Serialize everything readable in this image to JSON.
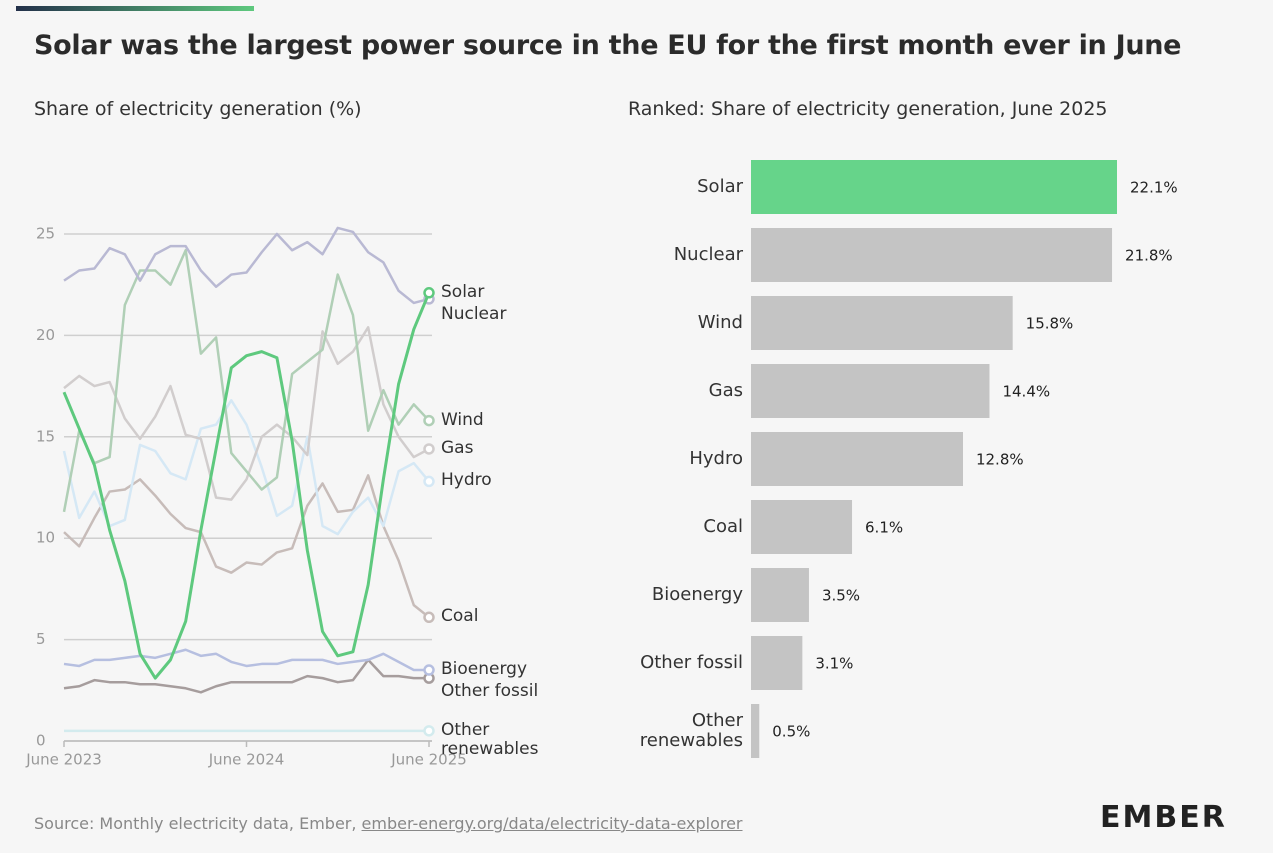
{
  "title": "Solar was the largest power source in the EU for the first month ever in June",
  "source": {
    "text": "Source: Monthly electricity data, Ember,",
    "link": "ember-energy.org/data/electricity-data-explorer"
  },
  "logo": "EMBER",
  "chart_data": [
    {
      "type": "line",
      "title": "Share of electricity generation (%)",
      "x": [
        "2023-06",
        "2023-07",
        "2023-08",
        "2023-09",
        "2023-10",
        "2023-11",
        "2023-12",
        "2024-01",
        "2024-02",
        "2024-03",
        "2024-04",
        "2024-05",
        "2024-06",
        "2024-07",
        "2024-08",
        "2024-09",
        "2024-10",
        "2024-11",
        "2024-12",
        "2025-01",
        "2025-02",
        "2025-03",
        "2025-04",
        "2025-05",
        "2025-06"
      ],
      "xticks": [
        {
          "value": "2023-06",
          "label": "June 2023"
        },
        {
          "value": "2024-06",
          "label": "June 2024"
        },
        {
          "value": "2025-06",
          "label": "June 2025"
        }
      ],
      "ylim": [
        0,
        26
      ],
      "yticks": [
        0,
        5,
        10,
        15,
        20,
        25
      ],
      "grid": true,
      "series": [
        {
          "name": "Other renewables",
          "color": "#d3ebee",
          "values": [
            0.5,
            0.5,
            0.5,
            0.5,
            0.5,
            0.5,
            0.5,
            0.5,
            0.5,
            0.5,
            0.5,
            0.5,
            0.5,
            0.5,
            0.5,
            0.5,
            0.5,
            0.5,
            0.5,
            0.5,
            0.5,
            0.5,
            0.5,
            0.5,
            0.5
          ]
        },
        {
          "name": "Other fossil",
          "color": "#a69d9d",
          "values": [
            2.6,
            2.7,
            3.0,
            2.9,
            2.9,
            2.8,
            2.8,
            2.7,
            2.6,
            2.4,
            2.7,
            2.9,
            2.9,
            2.9,
            2.9,
            2.9,
            3.2,
            3.1,
            2.9,
            3.0,
            4.0,
            3.2,
            3.2,
            3.1,
            3.1
          ]
        },
        {
          "name": "Bioenergy",
          "color": "#b6bfe0",
          "values": [
            3.8,
            3.7,
            4.0,
            4.0,
            4.1,
            4.2,
            4.1,
            4.3,
            4.5,
            4.2,
            4.3,
            3.9,
            3.7,
            3.8,
            3.8,
            4.0,
            4.0,
            4.0,
            3.8,
            3.9,
            4.0,
            4.3,
            3.9,
            3.5,
            3.5
          ]
        },
        {
          "name": "Coal",
          "color": "#c7bcb9",
          "values": [
            10.3,
            9.6,
            11.0,
            12.3,
            12.4,
            12.9,
            12.1,
            11.2,
            10.5,
            10.3,
            8.6,
            8.3,
            8.8,
            8.7,
            9.3,
            9.5,
            11.6,
            12.7,
            11.3,
            11.4,
            13.1,
            10.6,
            8.9,
            6.7,
            6.1
          ]
        },
        {
          "name": "Hydro",
          "color": "#d5e8f5",
          "values": [
            14.3,
            11.0,
            12.3,
            10.6,
            10.9,
            14.6,
            14.3,
            13.2,
            12.9,
            15.4,
            15.6,
            16.8,
            15.6,
            13.5,
            11.1,
            11.6,
            15.0,
            10.6,
            10.2,
            11.3,
            12.0,
            10.6,
            13.3,
            13.7,
            12.8
          ]
        },
        {
          "name": "Gas",
          "color": "#d1cdcd",
          "values": [
            17.4,
            18.0,
            17.5,
            17.7,
            15.9,
            14.9,
            16.0,
            17.5,
            15.1,
            14.9,
            12.0,
            11.9,
            12.9,
            15.0,
            15.6,
            15.0,
            14.1,
            20.2,
            18.6,
            19.2,
            20.4,
            16.6,
            15.0,
            14.0,
            14.4
          ]
        },
        {
          "name": "Wind",
          "color": "#b0cfb6",
          "values": [
            11.3,
            15.3,
            13.7,
            14.0,
            21.5,
            23.2,
            23.2,
            22.5,
            24.2,
            19.1,
            19.9,
            14.2,
            13.3,
            12.4,
            13.0,
            18.1,
            18.7,
            19.3,
            23.0,
            21.0,
            15.3,
            17.3,
            15.6,
            16.6,
            15.8
          ]
        },
        {
          "name": "Nuclear",
          "color": "#b9b9d3",
          "values": [
            22.7,
            23.2,
            23.3,
            24.3,
            24.0,
            22.7,
            24.0,
            24.4,
            24.4,
            23.2,
            22.4,
            23.0,
            23.1,
            24.1,
            25.0,
            24.2,
            24.6,
            24.0,
            25.3,
            25.1,
            24.1,
            23.6,
            22.2,
            21.6,
            21.8
          ]
        },
        {
          "name": "Solar",
          "color": "#5ec97e",
          "values": [
            17.2,
            15.4,
            13.6,
            10.4,
            7.9,
            4.3,
            3.1,
            4.0,
            5.9,
            10.4,
            14.4,
            18.4,
            19.0,
            19.2,
            18.9,
            14.8,
            9.4,
            5.4,
            4.2,
            4.4,
            7.7,
            12.9,
            17.6,
            20.3,
            22.1
          ]
        }
      ]
    },
    {
      "type": "barh",
      "title": "Ranked: Share of electricity generation, June 2025",
      "categories": [
        "Solar",
        "Nuclear",
        "Wind",
        "Gas",
        "Hydro",
        "Coal",
        "Bioenergy",
        "Other fossil",
        "Other renewables"
      ],
      "values": [
        22.1,
        21.8,
        15.8,
        14.4,
        12.8,
        6.1,
        3.5,
        3.1,
        0.5
      ],
      "value_labels": [
        "22.1%",
        "21.8%",
        "15.8%",
        "14.4%",
        "12.8%",
        "6.1%",
        "3.5%",
        "3.1%",
        "0.5%"
      ],
      "colors": [
        "#66d48a",
        "#c4c4c4",
        "#c4c4c4",
        "#c4c4c4",
        "#c4c4c4",
        "#c4c4c4",
        "#c4c4c4",
        "#c4c4c4",
        "#c4c4c4"
      ]
    }
  ]
}
